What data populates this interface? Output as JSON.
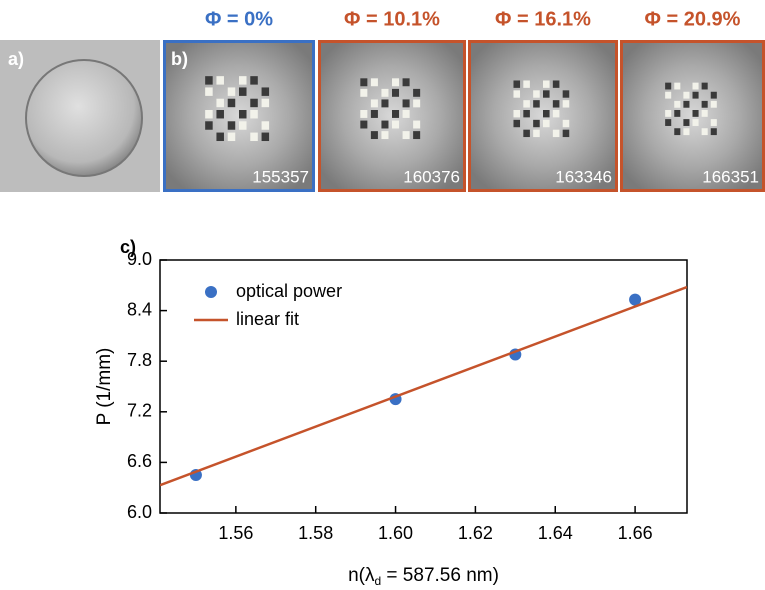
{
  "panels": [
    {
      "label": "a)"
    },
    {
      "label": "b)",
      "phi": "Φ = 0%",
      "count": "155357",
      "color": "#3a70c4"
    },
    {
      "phi": "Φ = 10.1%",
      "count": "160376",
      "color": "#c5532b"
    },
    {
      "phi": "Φ = 16.1%",
      "count": "163346",
      "color": "#c5532b"
    },
    {
      "phi": "Φ = 20.9%",
      "count": "166351",
      "color": "#c5532b"
    }
  ],
  "chart_data": {
    "type": "scatter",
    "panel_label": "c)",
    "x_label": {
      "text": "n(λ",
      "subscript": "d",
      "suffix": " = 587.56 nm)"
    },
    "y_label": "P (1/mm)",
    "xlim": [
      1.541,
      1.673
    ],
    "ylim": [
      6.0,
      9.0
    ],
    "xticks": [
      1.56,
      1.58,
      {
        "value": 1.6,
        "label": "1.60"
      },
      1.62,
      1.64,
      1.66
    ],
    "yticks": [
      {
        "value": 6,
        "label": "6.0"
      },
      6.6,
      7.2,
      7.8,
      8.4,
      {
        "value": 9,
        "label": "9.0"
      }
    ],
    "series": [
      {
        "name": "optical power",
        "color": "#3a70c4",
        "style": "points",
        "x": [
          1.55,
          1.6,
          1.63,
          1.66
        ],
        "values": [
          6.45,
          7.35,
          7.88,
          8.53
        ]
      },
      {
        "name": "linear fit",
        "color": "#c5532b",
        "style": "line",
        "x": [
          1.541,
          1.673
        ],
        "values": [
          6.33,
          8.68
        ]
      }
    ]
  }
}
